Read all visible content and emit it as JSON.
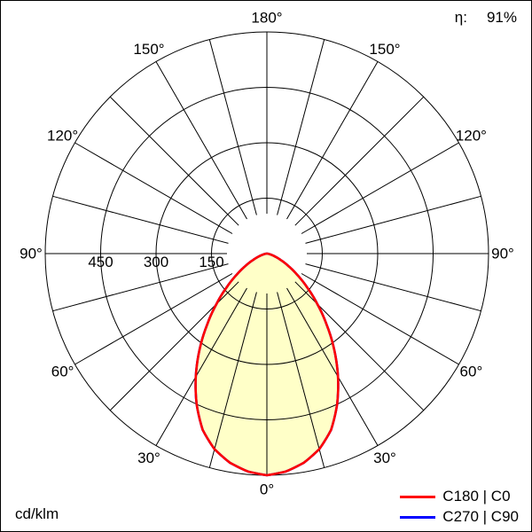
{
  "header": {
    "efficiency_symbol": "η:",
    "efficiency_value": "91%"
  },
  "footer": {
    "unit_label": "cd/klm"
  },
  "chart_data": {
    "type": "line",
    "subtype": "polar-photometric-intensity-diagram",
    "title": "",
    "unit": "cd/klm",
    "efficiency": "91%",
    "legend_position": "bottom-right",
    "grid": {
      "angle_step_deg": 15,
      "radial_ticks": [
        150,
        300,
        450
      ],
      "radial_max": 600,
      "grid_on": true
    },
    "angle_labels_deg": [
      0,
      30,
      60,
      90,
      120,
      150,
      180
    ],
    "colors": {
      "fill": "#ffffc8",
      "grid": "#000000",
      "c0_plane": "#ff0000",
      "c90_plane": "#0000ff"
    },
    "series": [
      {
        "name": "C180 | C0",
        "color": "#ff0000",
        "angles_deg": [
          0,
          5,
          10,
          15,
          20,
          25,
          30,
          35,
          40,
          45,
          50,
          55,
          60,
          65,
          70,
          75,
          80,
          85,
          90
        ],
        "values": [
          600,
          592,
          575,
          548,
          508,
          450,
          385,
          318,
          252,
          193,
          142,
          100,
          67,
          42,
          24,
          12,
          5,
          1.5,
          0
        ]
      },
      {
        "name": "C270 | C90",
        "color": "#0000ff",
        "angles_deg": [
          0,
          5,
          10,
          15,
          20,
          25,
          30,
          35,
          40,
          45,
          50,
          55,
          60,
          65,
          70,
          75,
          80,
          85,
          90
        ],
        "values": [
          600,
          592,
          575,
          548,
          508,
          450,
          385,
          318,
          252,
          193,
          142,
          100,
          67,
          42,
          24,
          12,
          5,
          1.5,
          0
        ]
      }
    ]
  }
}
